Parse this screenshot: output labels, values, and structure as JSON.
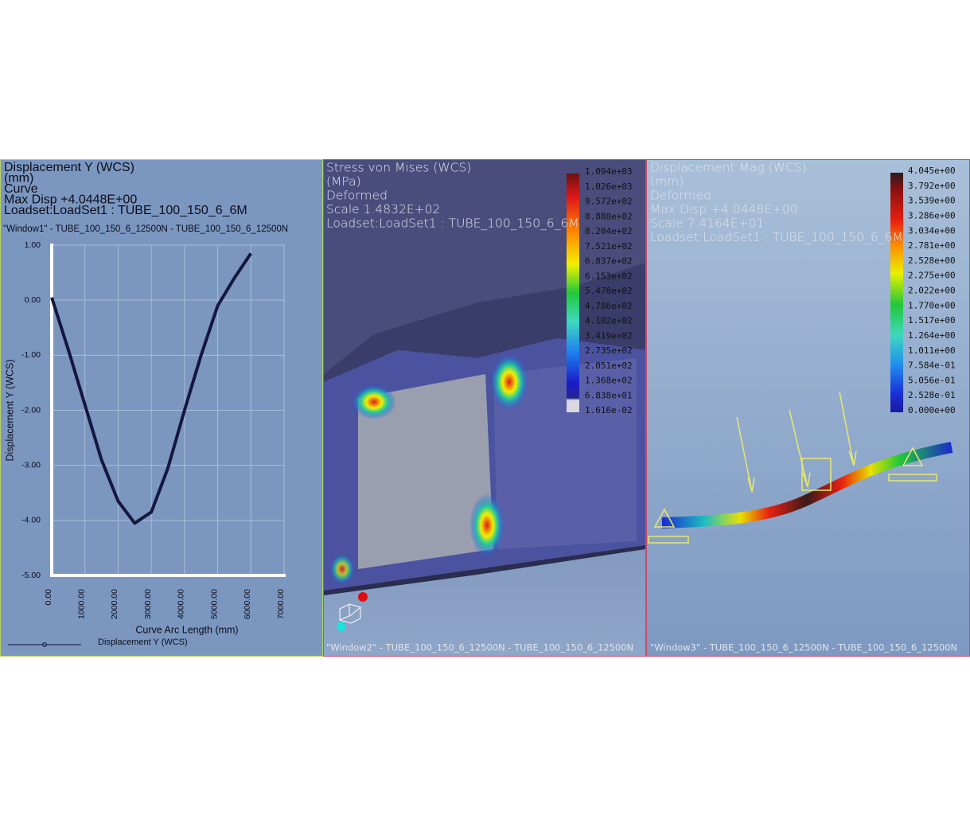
{
  "window1": {
    "header": [
      "Displacement Y (WCS)",
      "(mm)",
      "Curve",
      "Max Disp   +4.0448E+00",
      "Loadset:LoadSet1 :  TUBE_100_150_6_6M"
    ],
    "caption": "\"Window1\" - TUBE_100_150_6_12500N - TUBE_100_150_6_12500N",
    "chart_data": {
      "type": "line",
      "xlabel": "Curve Arc Length (mm)",
      "ylabel": "Displacement Y (WCS)",
      "x": [
        0,
        500,
        1000,
        1500,
        2000,
        2500,
        3000,
        3500,
        4000,
        4500,
        5000,
        5500,
        6000
      ],
      "series": [
        {
          "name": "Displacement Y (WCS)",
          "color": "#15173f",
          "values": [
            0.05,
            -0.9,
            -1.9,
            -2.9,
            -3.65,
            -4.05,
            -3.85,
            -3.05,
            -2.0,
            -1.0,
            -0.1,
            0.4,
            0.85
          ]
        }
      ],
      "xlim": [
        0,
        7000
      ],
      "ylim": [
        -5,
        1
      ],
      "xticks": [
        {
          "value": 0,
          "label": "0.00"
        },
        {
          "value": 1000,
          "label": "1000.00"
        },
        {
          "value": 2000,
          "label": "2000.00"
        },
        {
          "value": 3000,
          "label": "3000.00"
        },
        {
          "value": 4000,
          "label": "4000.00"
        },
        {
          "value": 5000,
          "label": "5000.00"
        },
        {
          "value": 6000,
          "label": "6000.00"
        },
        {
          "value": 7000,
          "label": "7000.00"
        }
      ],
      "yticks": [
        {
          "value": 1,
          "label": "1.00"
        },
        {
          "value": 0,
          "label": "0.00"
        },
        {
          "value": -1,
          "label": "-1.00"
        },
        {
          "value": -2,
          "label": "-2.00"
        },
        {
          "value": -3,
          "label": "-3.00"
        },
        {
          "value": -4,
          "label": "-4.00"
        },
        {
          "value": -5,
          "label": "-5.00"
        }
      ],
      "grid": true
    }
  },
  "window2": {
    "header": [
      "Stress von Mises (WCS)",
      "(MPa)",
      "Deformed",
      "Scale   1.4832E+02",
      "Loadset:LoadSet1  :   TUBE_100_150_6_6M"
    ],
    "legend_labels": [
      "1.094e+03",
      "1.026e+03",
      "9.572e+02",
      "8.888e+02",
      "8.204e+02",
      "7.521e+02",
      "6.837e+02",
      "6.153e+02",
      "5.470e+02",
      "4.786e+02",
      "4.102e+02",
      "3.419e+02",
      "2.735e+02",
      "2.051e+02",
      "1.368e+02",
      "6.838e+01",
      "1.616e-02"
    ],
    "caption": "\"Window2\"  -  TUBE_100_150_6_12500N  -  TUBE_100_150_6_12500N"
  },
  "window3": {
    "header": [
      "Displacement Mag (WCS)",
      "(mm)",
      "Deformed",
      "Max Disp   +4.0448E+00",
      "Scale   7.4164E+01",
      "Loadset:LoadSet1  :   TUBE_100_150_6_6M"
    ],
    "legend_labels": [
      "4.045e+00",
      "3.792e+00",
      "3.539e+00",
      "3.286e+00",
      "3.034e+00",
      "2.781e+00",
      "2.528e+00",
      "2.275e+00",
      "2.022e+00",
      "1.770e+00",
      "1.517e+00",
      "1.264e+00",
      "1.011e+00",
      "7.584e-01",
      "5.056e-01",
      "2.528e-01",
      "0.000e+00"
    ],
    "caption": "\"Window3\"  -  TUBE_100_150_6_12500N  -  TUBE_100_150_6_12500N"
  }
}
